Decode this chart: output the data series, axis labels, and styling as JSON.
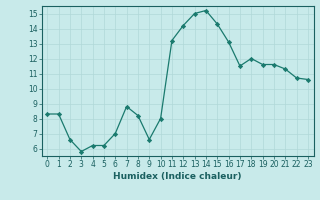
{
  "x": [
    0,
    1,
    2,
    3,
    4,
    5,
    6,
    7,
    8,
    9,
    10,
    11,
    12,
    13,
    14,
    15,
    16,
    17,
    18,
    19,
    20,
    21,
    22,
    23
  ],
  "y": [
    8.3,
    8.3,
    6.6,
    5.8,
    6.2,
    6.2,
    7.0,
    8.8,
    8.2,
    6.6,
    8.0,
    13.2,
    14.2,
    15.0,
    15.2,
    14.3,
    13.1,
    11.5,
    12.0,
    11.6,
    11.6,
    11.3,
    10.7,
    10.6
  ],
  "line_color": "#1a7a6e",
  "marker": "D",
  "marker_size": 2.2,
  "bg_color": "#c8eaea",
  "grid_color": "#b0d8d8",
  "tick_color": "#1a6060",
  "label_color": "#1a6060",
  "xlabel": "Humidex (Indice chaleur)",
  "xlim": [
    -0.5,
    23.5
  ],
  "ylim": [
    5.5,
    15.5
  ],
  "yticks": [
    6,
    7,
    8,
    9,
    10,
    11,
    12,
    13,
    14,
    15
  ],
  "xticks": [
    0,
    1,
    2,
    3,
    4,
    5,
    6,
    7,
    8,
    9,
    10,
    11,
    12,
    13,
    14,
    15,
    16,
    17,
    18,
    19,
    20,
    21,
    22,
    23
  ],
  "label_fontsize": 6.5,
  "tick_fontsize": 5.5
}
